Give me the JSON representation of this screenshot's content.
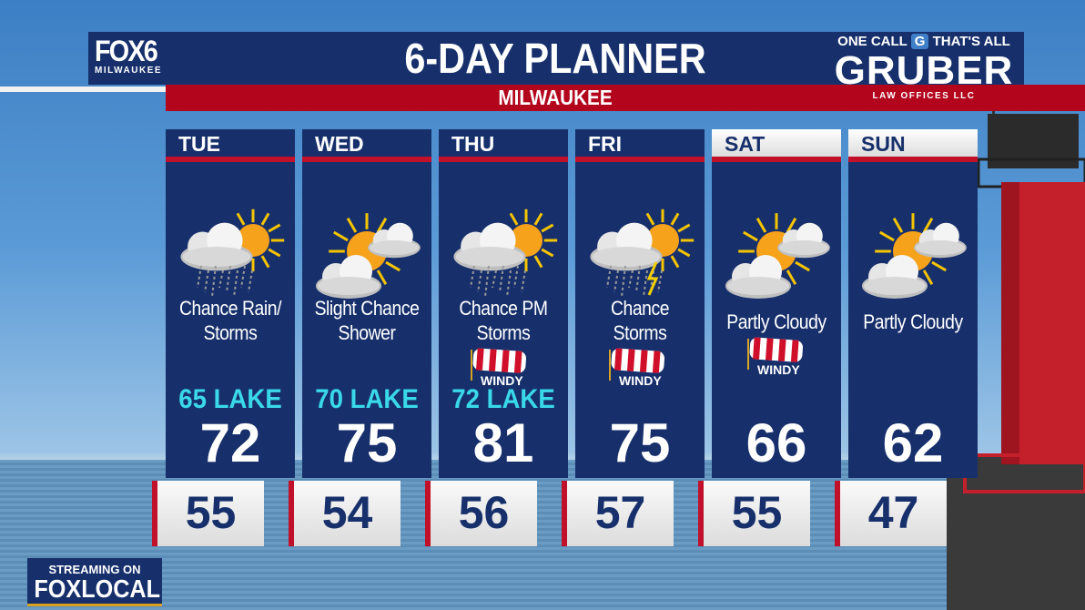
{
  "branding": {
    "station": "FOX6",
    "station_city": "MILWAUKEE",
    "sponsor_tagline": "ONE CALL",
    "sponsor_tagline2": "THAT'S ALL",
    "sponsor_name": "GRUBER",
    "sponsor_sub": "LAW OFFICES LLC",
    "streaming_label": "STREAMING ON",
    "streaming_service": "FOXLOCAL"
  },
  "header": {
    "title": "6-DAY PLANNER",
    "location": "MILWAUKEE"
  },
  "colors": {
    "navy": "#17306c",
    "red": "#c0102a",
    "lake_text": "#3ad9ea"
  },
  "days": [
    {
      "day": "TUE",
      "icon": "partly-cloudy-rain-icon",
      "condition1": "Chance Rain/",
      "condition2": "Storms",
      "windy": "",
      "lake": "65 LAKE",
      "high": "72",
      "low": "55",
      "weekend": false
    },
    {
      "day": "WED",
      "icon": "partly-sunny-icon",
      "condition1": "Slight Chance",
      "condition2": "Shower",
      "windy": "",
      "lake": "70 LAKE",
      "high": "75",
      "low": "54",
      "weekend": false
    },
    {
      "day": "THU",
      "icon": "partly-cloudy-rain-icon",
      "condition1": "Chance PM",
      "condition2": "Storms",
      "windy": "WINDY",
      "lake": "72 LAKE",
      "high": "81",
      "low": "56",
      "weekend": false
    },
    {
      "day": "FRI",
      "icon": "partly-cloudy-storm-icon",
      "condition1": "Chance",
      "condition2": "Storms",
      "windy": "WINDY",
      "lake": "",
      "high": "75",
      "low": "57",
      "weekend": false
    },
    {
      "day": "SAT",
      "icon": "partly-sunny-icon",
      "condition1": "Partly Cloudy",
      "condition2": "",
      "windy": "WINDY",
      "lake": "",
      "high": "66",
      "low": "55",
      "weekend": true
    },
    {
      "day": "SUN",
      "icon": "partly-sunny-icon",
      "condition1": "Partly Cloudy",
      "condition2": "",
      "windy": "",
      "lake": "",
      "high": "62",
      "low": "47",
      "weekend": true
    }
  ]
}
